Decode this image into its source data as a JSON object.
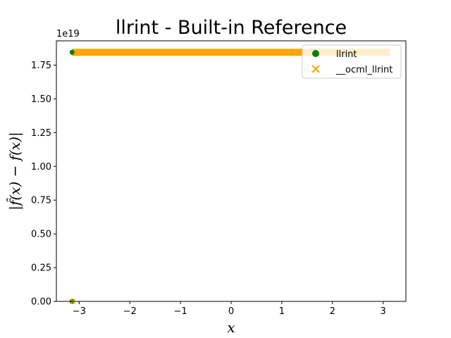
{
  "chart_data": {
    "type": "scatter",
    "title": "llrint - Built-in Reference",
    "xlabel": "x",
    "ylabel": "|f̂(x) − f(x)|",
    "y_offset_label": "1e19",
    "xlim": [
      -3.45,
      3.45
    ],
    "ylim": [
      0,
      1.93
    ],
    "y_scale_exponent": 19,
    "xticks": [
      -3,
      -2,
      -1,
      0,
      1,
      2,
      3
    ],
    "xtick_labels": [
      "−3",
      "−2",
      "−1",
      "0",
      "1",
      "2",
      "3"
    ],
    "yticks": [
      0.0,
      0.25,
      0.5,
      0.75,
      1.0,
      1.25,
      1.5,
      1.75
    ],
    "ytick_labels": [
      "0.00",
      "0.25",
      "0.50",
      "0.75",
      "1.00",
      "1.25",
      "1.50",
      "1.75"
    ],
    "grid": false,
    "legend_position": "top-right",
    "series": [
      {
        "name": "llrint",
        "marker": "circle",
        "color": "#008000",
        "points": [
          {
            "x": -3.14,
            "y": 1.845
          },
          {
            "x": -3.14,
            "y": 0.0
          }
        ]
      },
      {
        "name": "__ocml_llrint",
        "marker": "x",
        "color": "#FFA500",
        "x_range": [
          -3.14,
          3.14
        ],
        "y_band": 1.845,
        "points": [
          {
            "x": -3.13,
            "y": 0.0
          }
        ]
      }
    ]
  }
}
